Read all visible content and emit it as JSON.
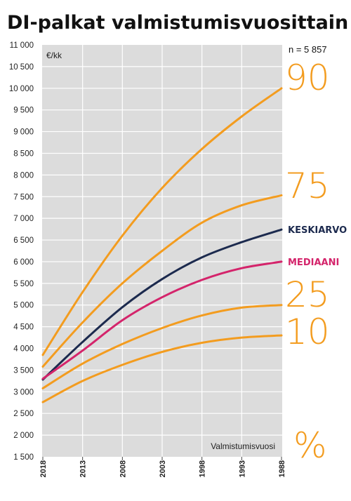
{
  "chart_data": {
    "type": "line",
    "title": "DI-palkat valmistumisvuosittain",
    "ylabel": "€/kk",
    "xlabel": "Valmistumisvuosi",
    "sample_size": "n = 5 857",
    "percent_symbol": "%",
    "ylim": [
      1500,
      11000
    ],
    "yticks": [
      "11 000",
      "10 500",
      "10 000",
      "9 500",
      "9 000",
      "8 500",
      "8 000",
      "7 500",
      "7 000",
      "6 500",
      "6 000",
      "5 500",
      "5 000",
      "4 500",
      "4 000",
      "3 500",
      "3 000",
      "2 500",
      "2 000",
      "1 500"
    ],
    "xlim": [
      2018,
      1988
    ],
    "x_reversed": true,
    "xticks": [
      2018,
      2013,
      2008,
      2003,
      1998,
      1993,
      1988
    ],
    "grid": true,
    "x": [
      2018,
      2013,
      2008,
      2003,
      1998,
      1993,
      1988
    ],
    "series": [
      {
        "name": "90",
        "label_style": "percentile",
        "color": "#f39c1f",
        "values": [
          3850,
          5300,
          6600,
          7700,
          8600,
          9350,
          10000
        ]
      },
      {
        "name": "75",
        "label_style": "percentile",
        "color": "#f39c1f",
        "values": [
          3580,
          4600,
          5500,
          6250,
          6900,
          7300,
          7530
        ]
      },
      {
        "name": "KESKIARVO",
        "label_style": "named",
        "color": "#1c2a4e",
        "values": [
          3280,
          4150,
          4950,
          5600,
          6100,
          6450,
          6740
        ]
      },
      {
        "name": "MEDIAANI",
        "label_style": "named",
        "color": "#d4246b",
        "values": [
          3300,
          3950,
          4650,
          5180,
          5580,
          5850,
          6000
        ]
      },
      {
        "name": "25",
        "label_style": "percentile",
        "color": "#f39c1f",
        "values": [
          3080,
          3650,
          4100,
          4470,
          4760,
          4940,
          5000
        ]
      },
      {
        "name": "10",
        "label_style": "percentile",
        "color": "#f39c1f",
        "values": [
          2760,
          3250,
          3620,
          3920,
          4130,
          4250,
          4300
        ]
      }
    ]
  }
}
